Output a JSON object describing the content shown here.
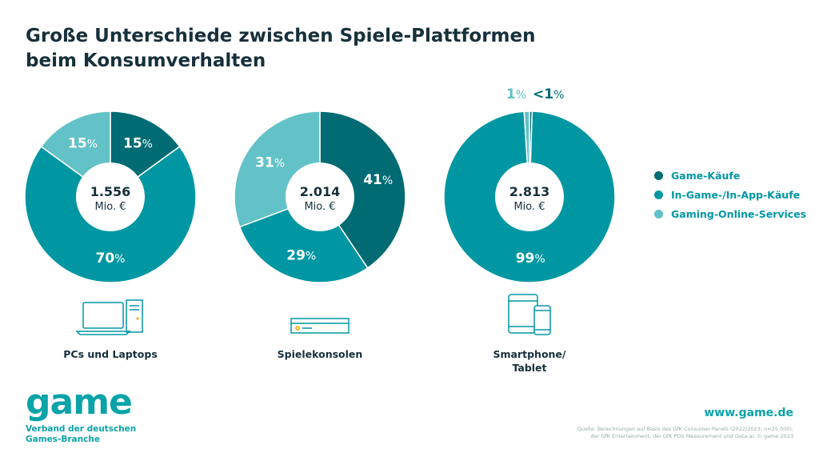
{
  "title_line1": "Große Unterschiede zwischen Spiele-Plattformen",
  "title_line2": "beim Konsumverhalten",
  "chart_data": {
    "type": "pie",
    "categories": [
      "Game-Käufe",
      "In-Game-/In-App-Käufe",
      "Gaming-Online-Services"
    ],
    "colors": [
      "#006b73",
      "#0097a3",
      "#62c2c7"
    ],
    "legend_position": "right",
    "charts": [
      {
        "platform": "PCs und Laptops",
        "total": "1.556",
        "unit": "Mio. €",
        "values": [
          15,
          70,
          15
        ],
        "labels": [
          "15",
          "70",
          "15"
        ]
      },
      {
        "platform": "Spielekonsolen",
        "total": "2.014",
        "unit": "Mio. €",
        "values": [
          41,
          29,
          31
        ],
        "labels": [
          "41",
          "29",
          "31"
        ]
      },
      {
        "platform_line1": "Smartphone/",
        "platform_line2": "Tablet",
        "total": "2.813",
        "unit": "Mio. €",
        "values": [
          0.5,
          98.5,
          1
        ],
        "labels": [
          "<1",
          "99",
          "1"
        ]
      }
    ],
    "percent_sign": "%"
  },
  "icons": [
    "laptop-desktop-icon",
    "game-console-icon",
    "tablet-smartphone-icon"
  ],
  "footer": {
    "logo": "game",
    "logo_sub1": "Verband der deutschen",
    "logo_sub2": "Games-Branche",
    "website": "www.game.de",
    "source1": "Quelle: Berechnungen auf Basis des GfK Consumer-Panels (2022/2023; n=25.000),",
    "source2": "der GfK Entertainment, der GfK POS Measurement und Data.ai. © game 2023"
  }
}
